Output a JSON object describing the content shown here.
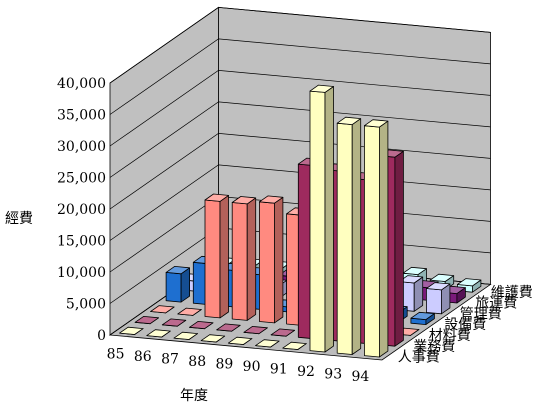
{
  "chart_data": {
    "type": "bar",
    "subtype": "3d-column",
    "title": "",
    "xlabel": "年度",
    "ylabel": "經費",
    "ylim": [
      0,
      40000
    ],
    "y_ticks": [
      "0",
      "5,000",
      "10,000",
      "15,000",
      "20,000",
      "25,000",
      "30,000",
      "35,000",
      "40,000"
    ],
    "categories": [
      "85",
      "86",
      "87",
      "88",
      "89",
      "90",
      "91",
      "92",
      "93",
      "94"
    ],
    "grid": true,
    "series": [
      {
        "name": "人事費",
        "color": "#FFFFC0",
        "values": [
          0,
          0,
          0,
          0,
          0,
          0,
          0,
          41200,
          36500,
          36500
        ]
      },
      {
        "name": "業務費",
        "color": "#9E2A5E",
        "values": [
          0,
          0,
          0,
          0,
          0,
          0,
          27500,
          27000,
          26000,
          30000
        ]
      },
      {
        "name": "材料費",
        "color": "#FF8A80",
        "values": [
          0,
          0,
          18500,
          18500,
          19000,
          17500,
          20500,
          0,
          0,
          0
        ]
      },
      {
        "name": "設備費",
        "color": "#1E6FD0",
        "values": [
          4500,
          6500,
          5800,
          5500,
          800,
          500,
          700,
          500,
          1500,
          800
        ]
      },
      {
        "name": "管理費",
        "color": "#CCCCFF",
        "values": [
          1600,
          2000,
          2000,
          2000,
          2500,
          2800,
          3000,
          3500,
          4500,
          3800
        ]
      },
      {
        "name": "旅運費",
        "color": "#7A1A7A",
        "values": [
          500,
          2000,
          800,
          1800,
          1500,
          1000,
          500,
          1000,
          2000,
          1500
        ]
      },
      {
        "name": "維護費",
        "color": "#CCFFFF",
        "values": [
          800,
          1000,
          1000,
          1000,
          1500,
          1200,
          600,
          2000,
          1300,
          1000
        ]
      }
    ]
  }
}
